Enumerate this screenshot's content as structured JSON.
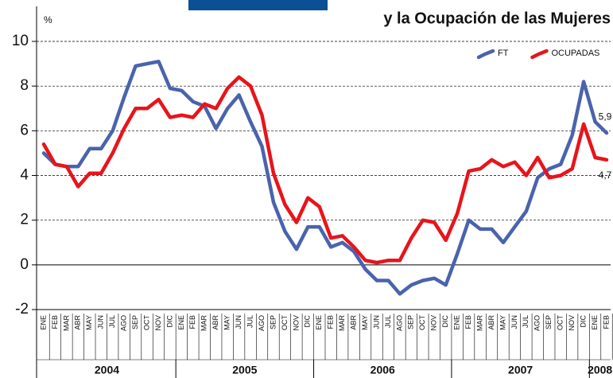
{
  "chart_data": {
    "type": "line",
    "title": "y la Ocupación de las Mujeres",
    "y_label": "%",
    "categories": [
      "ENE",
      "FEB",
      "MAR",
      "ABR",
      "MAY",
      "JUN",
      "JUL",
      "AGO",
      "SEP",
      "OCT",
      "NOV",
      "DIC",
      "ENE",
      "FEB",
      "MAR",
      "ABR",
      "MAY",
      "JUN",
      "JUL",
      "AGO",
      "SEP",
      "OCT",
      "NOV",
      "DIC",
      "ENE",
      "FEB",
      "MAR",
      "ABR",
      "MAY",
      "JUN",
      "JUL",
      "AGO",
      "SEP",
      "OCT",
      "NOV",
      "DIC",
      "ENE",
      "FEB",
      "MAR",
      "ABR",
      "MAY",
      "JUN",
      "JUL",
      "AGO",
      "SEP",
      "OCT",
      "NOV",
      "DIC",
      "ENE",
      "FEB"
    ],
    "years": [
      "2004",
      "2005",
      "2006",
      "2007",
      "2008"
    ],
    "series": [
      {
        "name": "FT",
        "color": "#4a63ad",
        "values": [
          5.0,
          4.5,
          4.4,
          4.4,
          5.2,
          5.2,
          6.0,
          7.5,
          8.9,
          9.0,
          9.1,
          7.9,
          7.8,
          7.3,
          7.1,
          6.1,
          7.0,
          7.6,
          6.4,
          5.3,
          2.8,
          1.5,
          0.7,
          1.7,
          1.7,
          0.8,
          1.0,
          0.6,
          -0.2,
          -0.7,
          -0.7,
          -1.3,
          -0.9,
          -0.7,
          -0.6,
          -0.9,
          0.5,
          2.0,
          1.6,
          1.6,
          1.0,
          1.7,
          2.4,
          3.9,
          4.3,
          4.5,
          5.8,
          8.2,
          6.4,
          5.9
        ],
        "value_labels": [
          null,
          null,
          null,
          null,
          null,
          null,
          null,
          null,
          null,
          null,
          null,
          null,
          null,
          null,
          null,
          null,
          null,
          null,
          null,
          null,
          null,
          null,
          null,
          null,
          null,
          null,
          null,
          null,
          null,
          null,
          null,
          null,
          null,
          null,
          null,
          null,
          null,
          null,
          null,
          null,
          null,
          null,
          null,
          null,
          null,
          null,
          null,
          null,
          null,
          "5,9"
        ]
      },
      {
        "name": "OCUPADAS",
        "color": "#e8141b",
        "values": [
          5.4,
          4.5,
          4.4,
          3.5,
          4.1,
          4.1,
          5.0,
          6.1,
          7.0,
          7.0,
          7.4,
          6.6,
          6.7,
          6.6,
          7.2,
          7.0,
          7.9,
          8.4,
          8.0,
          6.7,
          4.1,
          2.7,
          1.9,
          3.0,
          2.6,
          1.2,
          1.3,
          0.8,
          0.2,
          0.1,
          0.2,
          0.2,
          1.2,
          2.0,
          1.9,
          1.1,
          2.3,
          4.2,
          4.3,
          4.7,
          4.4,
          4.6,
          4.0,
          4.8,
          3.9,
          4.0,
          4.3,
          6.3,
          4.8,
          4.7
        ],
        "value_labels": [
          null,
          null,
          null,
          null,
          null,
          null,
          null,
          null,
          null,
          null,
          null,
          null,
          null,
          null,
          null,
          null,
          null,
          null,
          null,
          null,
          null,
          null,
          null,
          null,
          null,
          null,
          null,
          null,
          null,
          null,
          null,
          null,
          null,
          null,
          null,
          null,
          null,
          null,
          null,
          null,
          null,
          null,
          null,
          null,
          null,
          null,
          null,
          null,
          null,
          "4,7"
        ]
      }
    ],
    "ylim": [
      -2,
      10
    ],
    "yticks": [
      -2,
      0,
      2,
      4,
      6,
      8,
      10
    ],
    "grid": true,
    "legend": "top-right"
  }
}
